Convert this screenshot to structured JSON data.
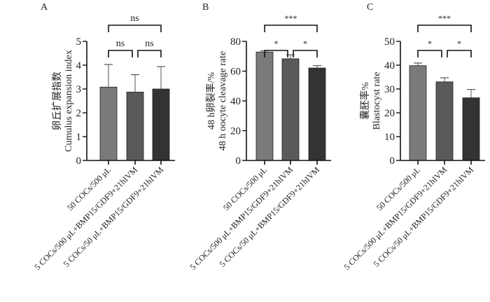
{
  "chart_data": [
    {
      "type": "bar",
      "panel": "A",
      "ylabel_cn": "卵丘扩展指数",
      "ylabel_en": "Cumulus expansion index",
      "categories": [
        "50 COCs/500 μL",
        "5 COCs/500 μL+BMP15/GDF9+21hIVM",
        "5 COCs/50 μL+BMP15/GDF9+21hIVM"
      ],
      "values": [
        3.08,
        2.87,
        3.0
      ],
      "errors": [
        0.95,
        0.73,
        0.94
      ],
      "ylim": [
        0,
        5
      ],
      "yticks": [
        "0",
        "1",
        "2",
        "3",
        "4",
        "5"
      ],
      "significance": [
        {
          "from": 0,
          "to": 1,
          "label": "ns"
        },
        {
          "from": 1,
          "to": 2,
          "label": "ns"
        },
        {
          "from": 0,
          "to": 2,
          "label": "ns"
        }
      ]
    },
    {
      "type": "bar",
      "panel": "B",
      "ylabel_cn": "48 h卵裂率/%",
      "ylabel_en": "48 h oocyte cleavage rate",
      "categories": [
        "50 COCs/500 μL",
        "5 COCs/500 μL+BMP15/GDF9+21hIVM",
        "5 COCs/50 μL+BMP15/GDF9+21hIVM"
      ],
      "values": [
        72.8,
        68.3,
        62.1
      ],
      "errors": [
        0.8,
        2.6,
        1.6
      ],
      "ylim": [
        0,
        80
      ],
      "yticks": [
        "0",
        "20",
        "40",
        "60",
        "80"
      ],
      "significance": [
        {
          "from": 0,
          "to": 1,
          "label": "*"
        },
        {
          "from": 1,
          "to": 2,
          "label": "*"
        },
        {
          "from": 0,
          "to": 2,
          "label": "***"
        }
      ]
    },
    {
      "type": "bar",
      "panel": "C",
      "ylabel_cn": "囊胚率%",
      "ylabel_en": "Blastocyst rate",
      "categories": [
        "50 COCs/500 μL",
        "5 COCs/500 μL+BMP15/GDF9+21hIVM",
        "5 COCs/50 μL+BMP15/GDF9+21hIVM"
      ],
      "values": [
        39.8,
        33.0,
        26.3
      ],
      "errors": [
        1.1,
        1.7,
        3.5
      ],
      "ylim": [
        0,
        50
      ],
      "yticks": [
        "0",
        "10",
        "20",
        "30",
        "40",
        "50"
      ],
      "significance": [
        {
          "from": 0,
          "to": 1,
          "label": "*"
        },
        {
          "from": 1,
          "to": 2,
          "label": "*"
        },
        {
          "from": 0,
          "to": 2,
          "label": "***"
        }
      ]
    }
  ],
  "colors": [
    "#7a7a7a",
    "#5a5a5a",
    "#333333"
  ]
}
